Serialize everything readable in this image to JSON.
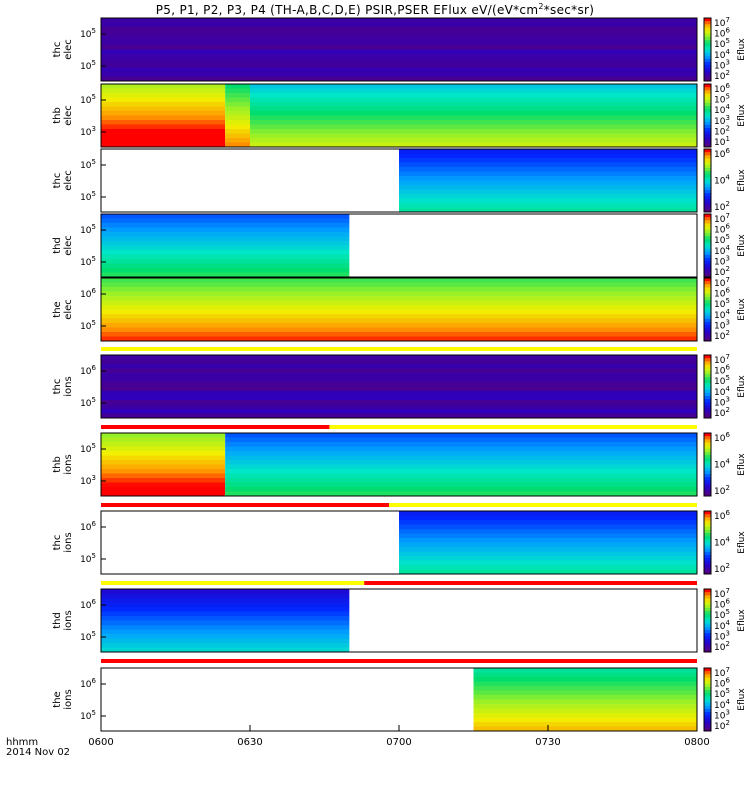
{
  "title": "P5, P1, P2, P3, P4 (TH-A,B,C,D,E) PSIR,PSER EFlux eV/(eV*cm",
  "title_sup": "2",
  "title_end": "*sec*sr)",
  "footer": {
    "line1": "hhmm",
    "line2": "2014 Nov 02"
  },
  "chart_data": {
    "type": "heatmap",
    "x_axis": {
      "format": "hhmm",
      "date": "2014 Nov 02",
      "range": [
        "0600",
        "0800"
      ],
      "ticks": [
        "0600",
        "0630",
        "0700",
        "0730",
        "0800"
      ]
    },
    "colorbar_label": "Eflux",
    "panels": [
      {
        "label": [
          "thc",
          "elec"
        ],
        "cb_ticks": [
          "10^7",
          "10^6",
          "10^5",
          "10^4",
          "10^3",
          "10^2"
        ],
        "y_ticks": [
          "10^5",
          "10^5"
        ]
      },
      {
        "label": [
          "thb",
          "elec"
        ],
        "cb_ticks": [
          "10^6",
          "10^5",
          "10^4",
          "10^3",
          "10^2",
          "10^1"
        ],
        "y_ticks": [
          "10^5",
          "10^3"
        ]
      },
      {
        "label": [
          "thc",
          "elec"
        ],
        "cb_ticks": [
          "10^6",
          "10^4",
          "10^2"
        ],
        "y_ticks": [
          "10^5",
          "10^5"
        ]
      },
      {
        "label": [
          "thd",
          "elec"
        ],
        "cb_ticks": [
          "10^7",
          "10^6",
          "10^5",
          "10^4",
          "10^3",
          "10^2"
        ],
        "y_ticks": [
          "10^5",
          "10^5"
        ]
      },
      {
        "label": [
          "the",
          "elec"
        ],
        "cb_ticks": [
          "10^7",
          "10^6",
          "10^5",
          "10^4",
          "10^3",
          "10^2"
        ],
        "y_ticks": [
          "10^6",
          "10^5"
        ]
      },
      {
        "label": [
          "thc",
          "ions"
        ],
        "cb_ticks": [
          "10^7",
          "10^6",
          "10^5",
          "10^4",
          "10^3",
          "10^2"
        ],
        "y_ticks": [
          "10^6",
          "10^5"
        ]
      },
      {
        "label": [
          "thb",
          "ions"
        ],
        "cb_ticks": [
          "10^6",
          "10^4",
          "10^2"
        ],
        "y_ticks": [
          "10^5",
          "10^3"
        ]
      },
      {
        "label": [
          "thc",
          "ions"
        ],
        "cb_ticks": [
          "10^6",
          "10^4",
          "10^2"
        ],
        "y_ticks": [
          "10^6",
          "10^5"
        ]
      },
      {
        "label": [
          "thd",
          "ions"
        ],
        "cb_ticks": [
          "10^7",
          "10^6",
          "10^5",
          "10^4",
          "10^3",
          "10^2"
        ],
        "y_ticks": [
          "10^6",
          "10^5"
        ]
      },
      {
        "label": [
          "the",
          "ions"
        ],
        "cb_ticks": [
          "10^7",
          "10^6",
          "10^5",
          "10^4",
          "10^3",
          "10^2"
        ],
        "y_ticks": [
          "10^6",
          "10^5"
        ]
      }
    ],
    "data_coverage": [
      {
        "panel": 0,
        "segments": [
          {
            "from": "0600",
            "to": "0800",
            "level": 0.02
          }
        ]
      },
      {
        "panel": 1,
        "segments": [
          {
            "from": "0600",
            "to": "0625",
            "level": 0.75
          },
          {
            "from": "0625",
            "to": "0630",
            "level": 0.6
          },
          {
            "from": "0630",
            "to": "0800",
            "level": 0.45
          }
        ]
      },
      {
        "panel": 2,
        "segments": [
          {
            "from": "0700",
            "to": "0800",
            "level": 0.22
          }
        ]
      },
      {
        "panel": 3,
        "segments": [
          {
            "from": "0600",
            "to": "0650",
            "level": 0.3
          }
        ]
      },
      {
        "panel": 4,
        "segments": [
          {
            "from": "0600",
            "to": "0800",
            "level": 0.65
          }
        ]
      },
      {
        "panel": 5,
        "segments": [
          {
            "from": "0600",
            "to": "0800",
            "level": 0.02
          }
        ]
      },
      {
        "panel": 6,
        "segments": [
          {
            "from": "0600",
            "to": "0625",
            "level": 0.72
          },
          {
            "from": "0625",
            "to": "0800",
            "level": 0.3
          }
        ]
      },
      {
        "panel": 7,
        "segments": [
          {
            "from": "0700",
            "to": "0800",
            "level": 0.22
          }
        ]
      },
      {
        "panel": 8,
        "segments": [
          {
            "from": "0600",
            "to": "0650",
            "level": 0.15
          }
        ]
      },
      {
        "panel": 9,
        "segments": [
          {
            "from": "0715",
            "to": "0800",
            "level": 0.55
          }
        ]
      }
    ],
    "mode_bars": [
      {
        "after_panel": 4,
        "segments": [
          {
            "from": "0600",
            "to": "0800",
            "color": "#ffff00"
          }
        ]
      },
      {
        "after_panel": 5,
        "segments": [
          {
            "from": "0600",
            "to": "0646",
            "color": "#ff0000"
          },
          {
            "from": "0646",
            "to": "0800",
            "color": "#ffff00"
          }
        ]
      },
      {
        "after_panel": 6,
        "segments": [
          {
            "from": "0600",
            "to": "0658",
            "color": "#ff0000"
          },
          {
            "from": "0658",
            "to": "0800",
            "color": "#ffff00"
          }
        ]
      },
      {
        "after_panel": 7,
        "segments": [
          {
            "from": "0600",
            "to": "0653",
            "color": "#ffff00"
          },
          {
            "from": "0653",
            "to": "0800",
            "color": "#ff0000"
          }
        ]
      },
      {
        "after_panel": 8,
        "segments": [
          {
            "from": "0600",
            "to": "0800",
            "color": "#ff0000"
          }
        ]
      }
    ]
  }
}
